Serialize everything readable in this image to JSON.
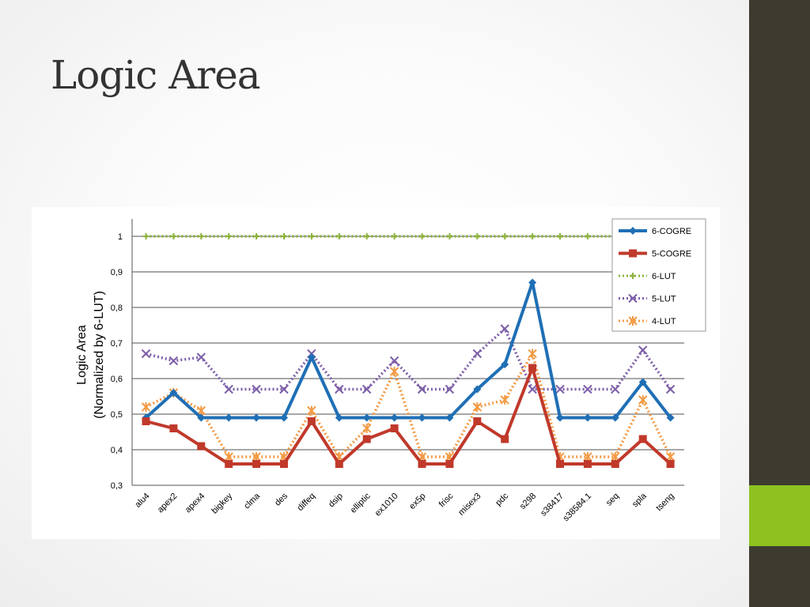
{
  "slide": {
    "title": "Logic Area",
    "colors": {
      "side_bar": "#3d3b30",
      "accent": "#8dc21f"
    }
  },
  "chart_data": {
    "type": "line",
    "title": "",
    "xlabel": "",
    "ylabel": [
      "Logic Area",
      "(Normalized by 6-LUT)"
    ],
    "ylim": [
      0.3,
      1.0
    ],
    "yticks": [
      "0,3",
      "0,4",
      "0,5",
      "0,6",
      "0,7",
      "0,8",
      "0,9",
      "1"
    ],
    "grid": "horizontal",
    "legend_position": "top-right",
    "categories": [
      "alu4",
      "apex2",
      "apex4",
      "bigkey",
      "clma",
      "des",
      "diffeq",
      "dsip",
      "elliptic",
      "ex1010",
      "ex5p",
      "frisc",
      "misex3",
      "pdc",
      "s298",
      "s38417",
      "s38584.1",
      "seq",
      "spla",
      "tseng"
    ],
    "series": [
      {
        "name": "6-COGRE",
        "color": "#1f6fb5",
        "style": "solid",
        "marker": "diamond",
        "values": [
          0.49,
          0.56,
          0.49,
          0.49,
          0.49,
          0.49,
          0.66,
          0.49,
          0.49,
          0.49,
          0.49,
          0.49,
          0.57,
          0.64,
          0.87,
          0.49,
          0.49,
          0.49,
          0.59,
          0.49
        ]
      },
      {
        "name": "5-COGRE",
        "color": "#c0392b",
        "style": "solid",
        "marker": "square",
        "values": [
          0.48,
          0.46,
          0.41,
          0.36,
          0.36,
          0.36,
          0.48,
          0.36,
          0.43,
          0.46,
          0.36,
          0.36,
          0.48,
          0.43,
          0.63,
          0.36,
          0.36,
          0.36,
          0.43,
          0.36
        ]
      },
      {
        "name": "6-LUT",
        "color": "#8db33f",
        "style": "dotted",
        "marker": "plus",
        "values": [
          1,
          1,
          1,
          1,
          1,
          1,
          1,
          1,
          1,
          1,
          1,
          1,
          1,
          1,
          1,
          1,
          1,
          1,
          1,
          1
        ]
      },
      {
        "name": "5-LUT",
        "color": "#7d5fa8",
        "style": "dotted",
        "marker": "x",
        "values": [
          0.67,
          0.65,
          0.66,
          0.57,
          0.57,
          0.57,
          0.67,
          0.57,
          0.57,
          0.65,
          0.57,
          0.57,
          0.67,
          0.74,
          0.57,
          0.57,
          0.57,
          0.57,
          0.68,
          0.57
        ]
      },
      {
        "name": "4-LUT",
        "color": "#f39a44",
        "style": "dotted",
        "marker": "star",
        "values": [
          0.52,
          0.56,
          0.51,
          0.38,
          0.38,
          0.38,
          0.51,
          0.38,
          0.46,
          0.62,
          0.38,
          0.38,
          0.52,
          0.54,
          0.67,
          0.38,
          0.38,
          0.38,
          0.54,
          0.38
        ]
      }
    ]
  }
}
